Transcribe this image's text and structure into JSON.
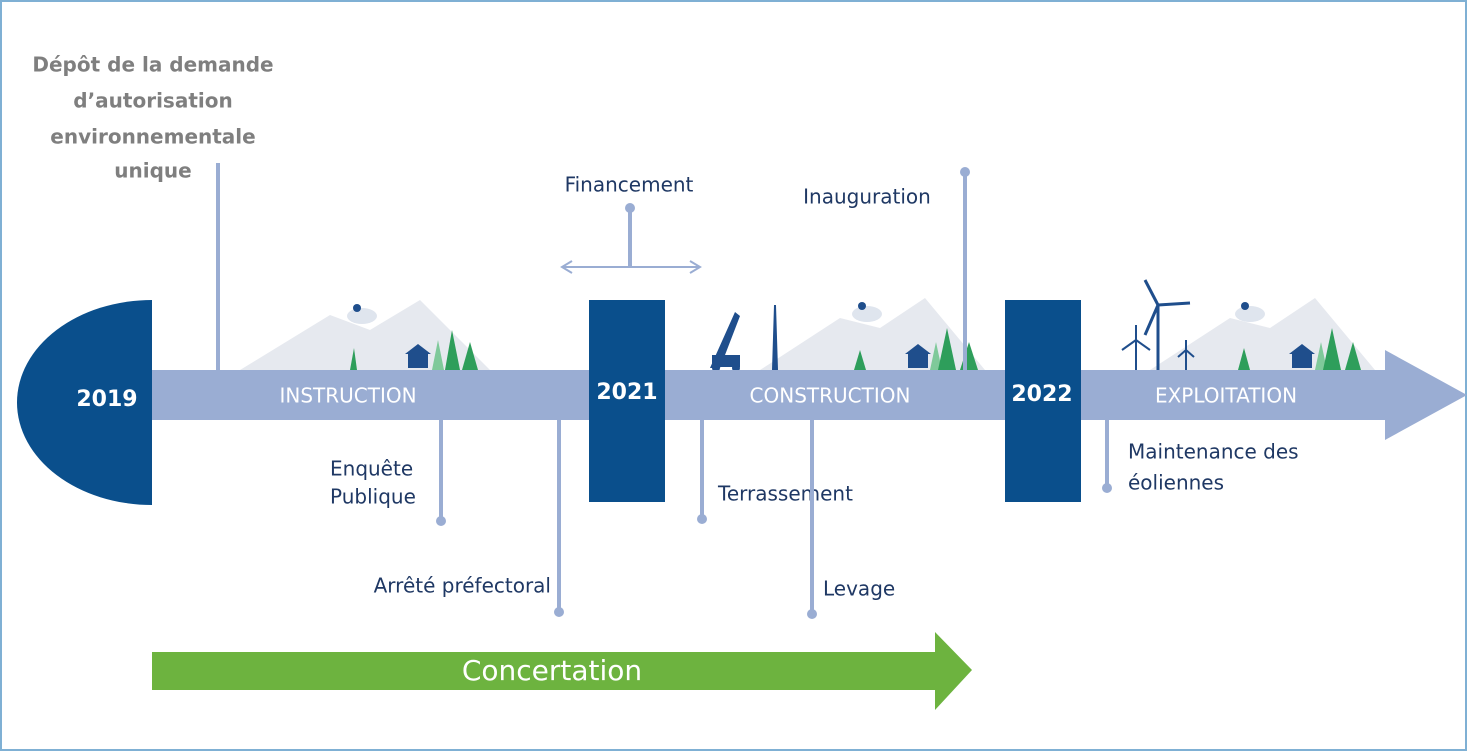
{
  "years": [
    "2019",
    "2021",
    "2022"
  ],
  "phases": [
    "INSTRUCTION",
    "CONSTRUCTION",
    "EXPLOITATION"
  ],
  "milestones": {
    "depot": [
      "Dépôt de la demande",
      "d’autorisation",
      "environnementale",
      "unique"
    ],
    "enquete": [
      "Enquête",
      "Publique"
    ],
    "arrete": "Arrêté préfectoral",
    "financement": "Financement",
    "inauguration": "Inauguration",
    "terrassement": "Terrassement",
    "levage": "Levage",
    "maintenance": [
      "Maintenance des",
      "éoliennes"
    ]
  },
  "concertation": "Concertation"
}
